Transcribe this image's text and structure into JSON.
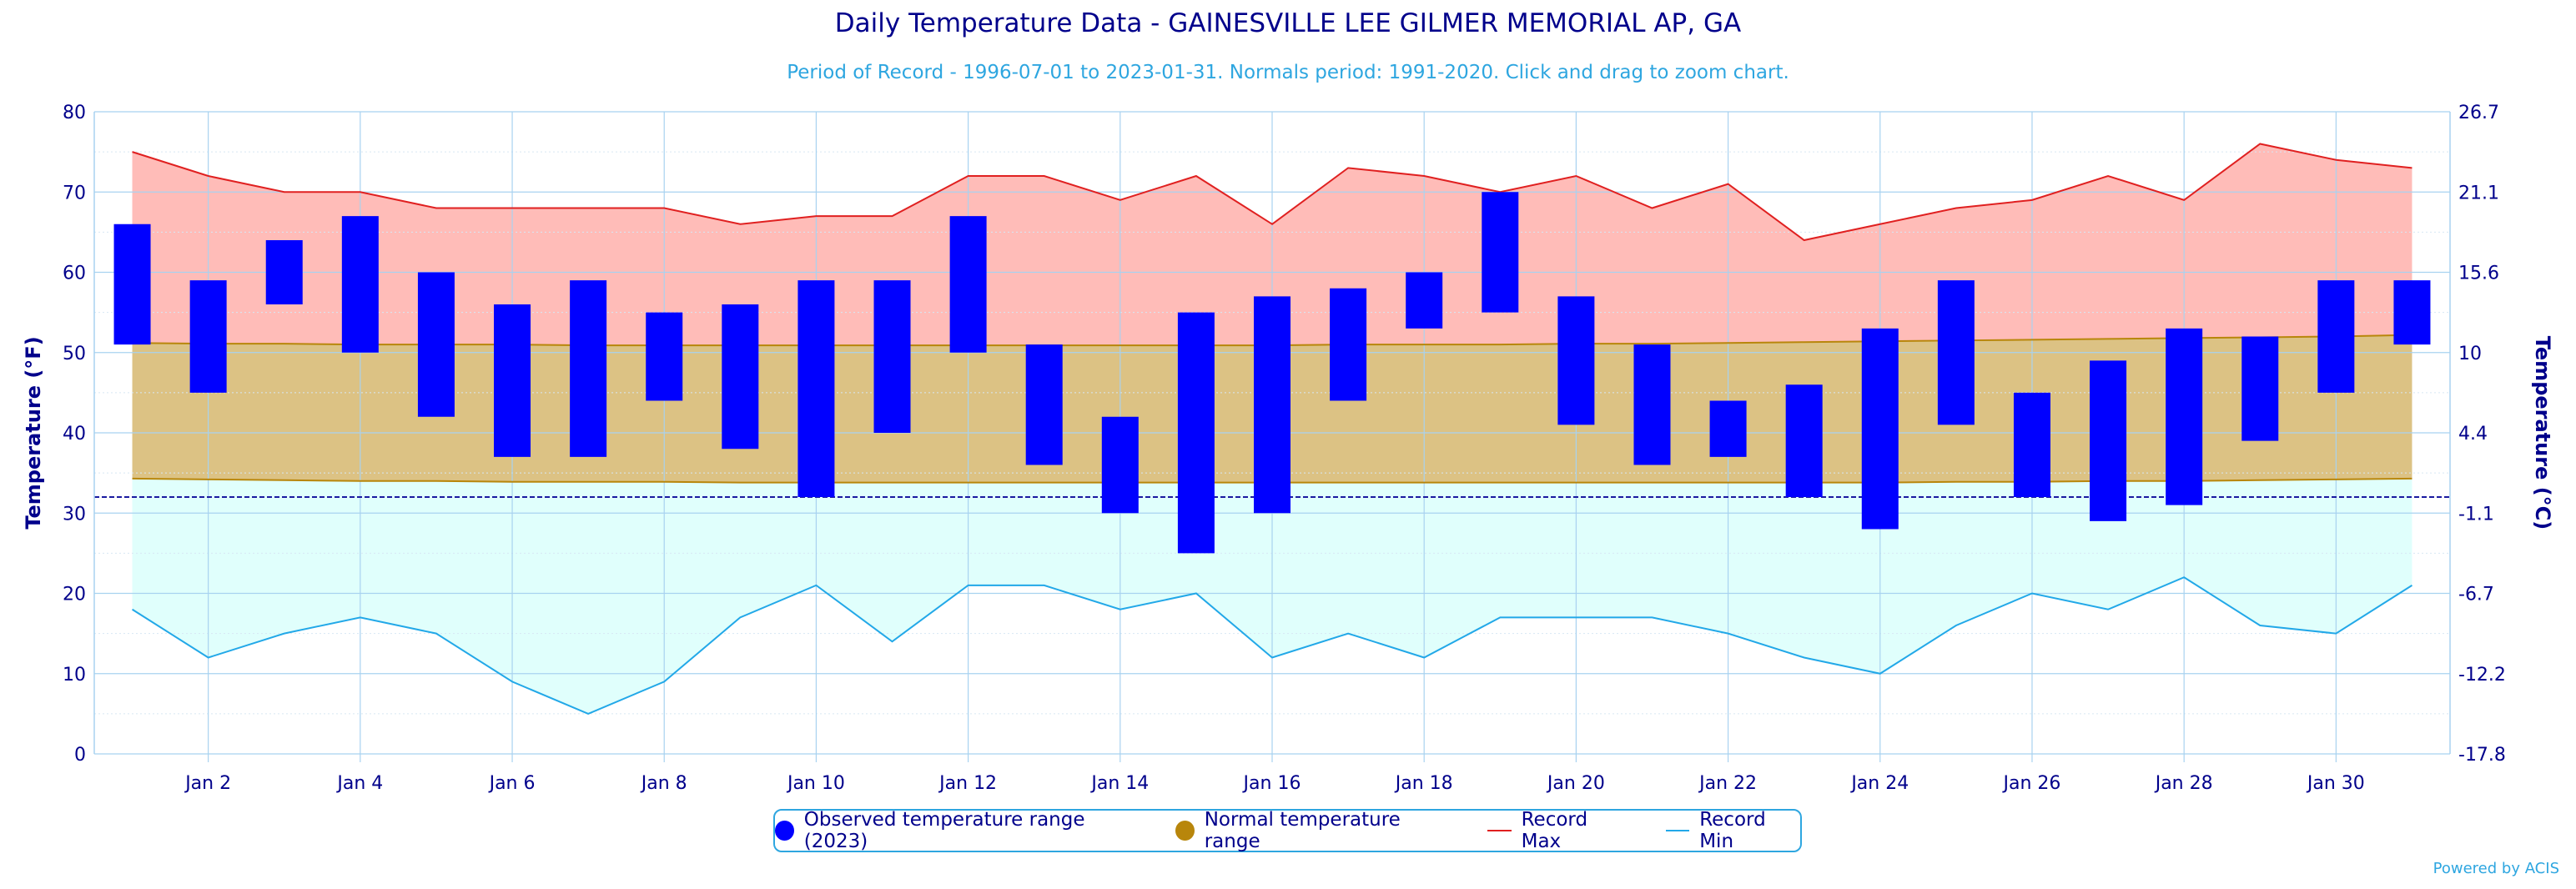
{
  "title": "Daily Temperature Data - GAINESVILLE LEE GILMER MEMORIAL AP, GA",
  "subtitle": "Period of Record - 1996-07-01 to 2023-01-31. Normals period: 1991-2020. Click and drag to zoom chart.",
  "credit": "Powered by ACIS",
  "colors": {
    "observed": "#0000ff",
    "normal_fill": "#dcc284",
    "normal_line": "#b8860b",
    "record_max_fill": "#ffbcb8",
    "record_max_line": "#e02020",
    "record_min_fill": "#e0fffc",
    "record_min_line": "#22a8e8",
    "grid": "#a8d2f0",
    "text": "#00008b"
  },
  "legend": {
    "observed": "Observed temperature range (2023)",
    "normal": "Normal temperature range",
    "record_max": "Record Max",
    "record_min": "Record Min"
  },
  "chart_data": {
    "type": "bar",
    "title": "Daily Temperature Data - GAINESVILLE LEE GILMER MEMORIAL AP, GA",
    "subtitle": "Period of Record - 1996-07-01 to 2023-01-31. Normals period: 1991-2020. Click and drag to zoom chart.",
    "ylabel": "Temperature (°F)",
    "ylabel_right": "Temperature (°C)",
    "ylim": [
      0,
      80
    ],
    "y_ticks": [
      "0",
      "10",
      "20",
      "30",
      "40",
      "50",
      "60",
      "70",
      "80"
    ],
    "y_ticks_right": [
      "-17.8",
      "-12.2",
      "-6.7",
      "-1.1",
      "4.4",
      "10",
      "15.6",
      "21.1",
      "26.7"
    ],
    "x": [
      1,
      2,
      3,
      4,
      5,
      6,
      7,
      8,
      9,
      10,
      11,
      12,
      13,
      14,
      15,
      16,
      17,
      18,
      19,
      20,
      21,
      22,
      23,
      24,
      25,
      26,
      27,
      28,
      29,
      30,
      31
    ],
    "x_tick_labels": [
      "Jan 2",
      "Jan 4",
      "Jan 6",
      "Jan 8",
      "Jan 10",
      "Jan 12",
      "Jan 14",
      "Jan 16",
      "Jan 18",
      "Jan 20",
      "Jan 22",
      "Jan 24",
      "Jan 26",
      "Jan 28",
      "Jan 30"
    ],
    "x_tick_days": [
      2,
      4,
      6,
      8,
      10,
      12,
      14,
      16,
      18,
      20,
      22,
      24,
      26,
      28,
      30
    ],
    "freezing_line": 32,
    "series": [
      {
        "name": "Observed temperature range (2023)",
        "low": [
          51,
          45,
          56,
          50,
          42,
          37,
          37,
          44,
          38,
          32,
          40,
          50,
          36,
          30,
          25,
          30,
          44,
          53,
          55,
          41,
          36,
          37,
          32,
          28,
          41,
          32,
          29,
          31,
          39,
          45,
          51
        ],
        "high": [
          66,
          59,
          64,
          67,
          60,
          56,
          59,
          55,
          56,
          59,
          59,
          67,
          51,
          42,
          55,
          57,
          58,
          60,
          70,
          57,
          51,
          44,
          46,
          53,
          59,
          45,
          49,
          53,
          52,
          59,
          59
        ]
      },
      {
        "name": "Normal temperature range",
        "low": [
          34.3,
          34.2,
          34.1,
          34.0,
          34.0,
          33.9,
          33.9,
          33.9,
          33.8,
          33.8,
          33.8,
          33.8,
          33.8,
          33.8,
          33.8,
          33.8,
          33.8,
          33.8,
          33.8,
          33.8,
          33.8,
          33.8,
          33.8,
          33.8,
          33.9,
          33.9,
          34.0,
          34.0,
          34.1,
          34.2,
          34.3
        ],
        "high": [
          51.2,
          51.1,
          51.1,
          51.0,
          51.0,
          51.0,
          50.9,
          50.9,
          50.9,
          50.9,
          50.9,
          50.9,
          50.9,
          50.9,
          50.9,
          50.9,
          51.0,
          51.0,
          51.0,
          51.1,
          51.1,
          51.2,
          51.3,
          51.4,
          51.5,
          51.6,
          51.7,
          51.8,
          51.9,
          52.0,
          52.2
        ]
      },
      {
        "name": "Record Max",
        "values": [
          75,
          72,
          70,
          70,
          68,
          68,
          68,
          68,
          66,
          67,
          67,
          72,
          72,
          69,
          72,
          66,
          73,
          72,
          70,
          72,
          68,
          71,
          64,
          66,
          68,
          69,
          72,
          69,
          76,
          74,
          73
        ]
      },
      {
        "name": "Record Min",
        "values": [
          18,
          12,
          15,
          17,
          15,
          9,
          5,
          9,
          17,
          21,
          14,
          21,
          21,
          18,
          20,
          12,
          15,
          12,
          17,
          17,
          17,
          15,
          12,
          10,
          16,
          20,
          18,
          22,
          16,
          15,
          21
        ]
      }
    ],
    "grid": true,
    "legend_position": "bottom-center"
  }
}
